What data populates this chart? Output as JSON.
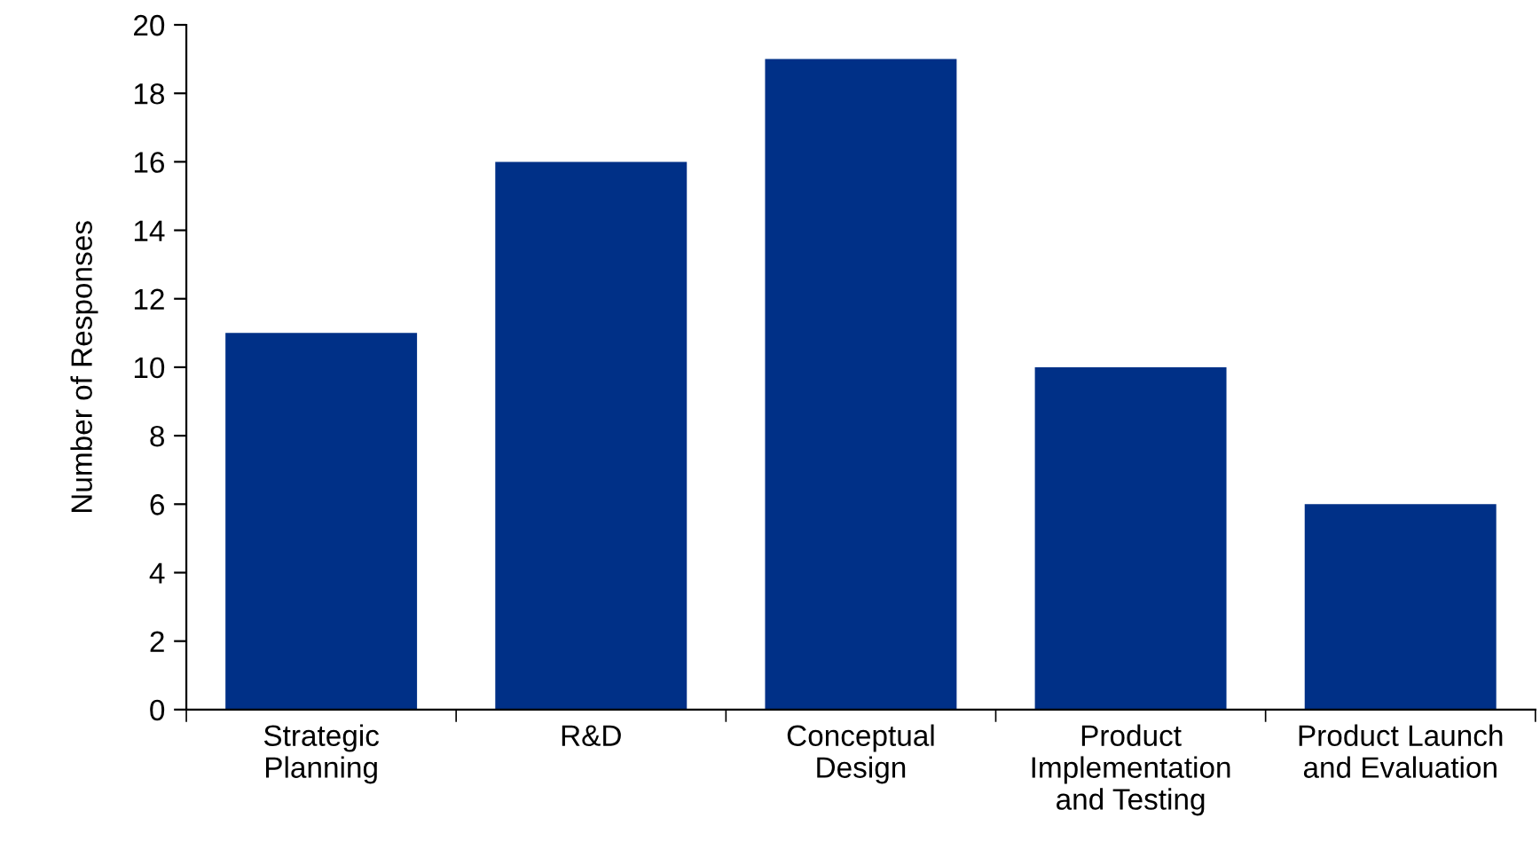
{
  "chart_data": {
    "type": "bar",
    "ylabel": "Number of Responses",
    "categories": [
      "Strategic\nPlanning",
      "R&D",
      "Conceptual\nDesign",
      "Product\nImplementation\nand Testing",
      "Product Launch\nand Evaluation"
    ],
    "values": [
      11,
      16,
      19,
      10,
      6
    ],
    "color": "#003087",
    "ylim": [
      0,
      20
    ],
    "yticks": [
      0,
      2,
      4,
      6,
      8,
      10,
      12,
      14,
      16,
      18,
      20
    ],
    "grid": false,
    "legend": false
  }
}
